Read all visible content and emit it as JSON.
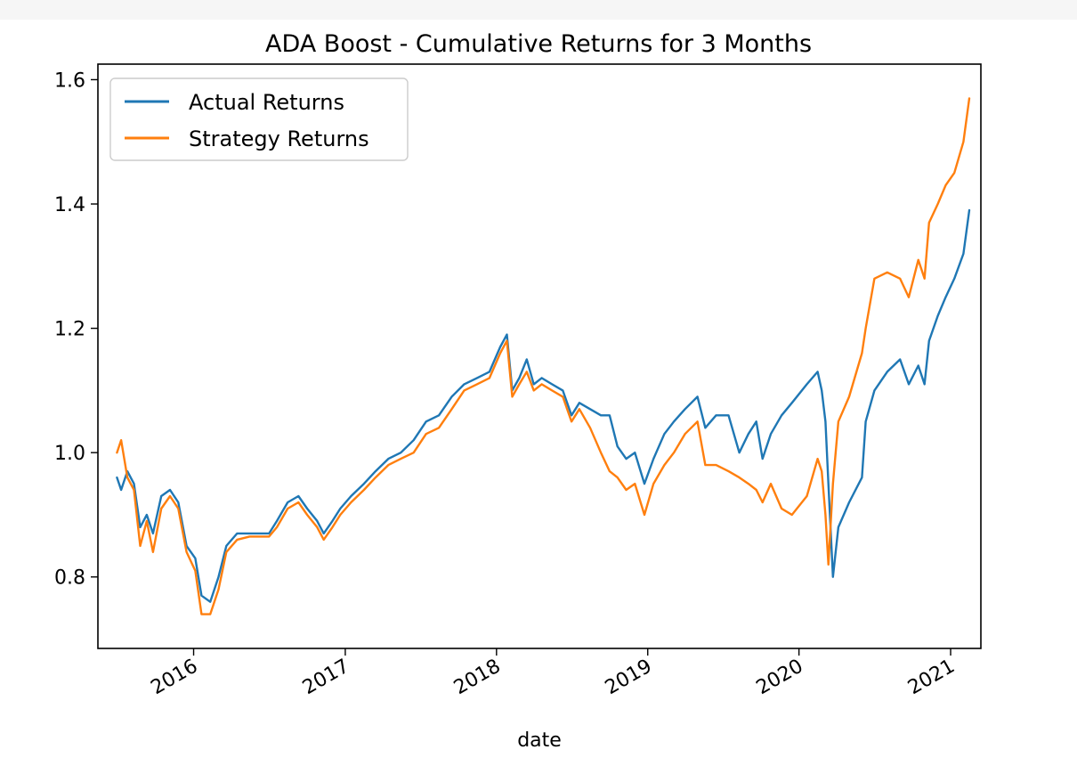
{
  "chart_data": {
    "type": "line",
    "title": "ADA Boost - Cumulative Returns for 3 Months",
    "xlabel": "date",
    "ylabel": "",
    "xlim": [
      "2015-05-15",
      "2021-03-15"
    ],
    "ylim": [
      0.685,
      1.625
    ],
    "x_ticks": [
      "2016",
      "2017",
      "2018",
      "2019",
      "2020",
      "2021"
    ],
    "y_ticks": [
      0.8,
      1.0,
      1.2,
      1.4,
      1.6
    ],
    "y_tick_labels": [
      "0.8",
      "1.0",
      "1.2",
      "1.4",
      "1.6"
    ],
    "grid": false,
    "legend_position": "top-left",
    "series": [
      {
        "name": "Actual Returns",
        "color": "#1f77b4",
        "points": [
          [
            "2015-06-30",
            0.96
          ],
          [
            "2015-07-10",
            0.94
          ],
          [
            "2015-07-25",
            0.97
          ],
          [
            "2015-08-10",
            0.95
          ],
          [
            "2015-08-25",
            0.88
          ],
          [
            "2015-09-10",
            0.9
          ],
          [
            "2015-09-25",
            0.87
          ],
          [
            "2015-10-15",
            0.93
          ],
          [
            "2015-11-05",
            0.94
          ],
          [
            "2015-11-25",
            0.92
          ],
          [
            "2015-12-15",
            0.85
          ],
          [
            "2016-01-05",
            0.83
          ],
          [
            "2016-01-20",
            0.77
          ],
          [
            "2016-02-10",
            0.76
          ],
          [
            "2016-03-01",
            0.8
          ],
          [
            "2016-03-20",
            0.85
          ],
          [
            "2016-04-15",
            0.87
          ],
          [
            "2016-05-15",
            0.87
          ],
          [
            "2016-06-15",
            0.87
          ],
          [
            "2016-07-01",
            0.87
          ],
          [
            "2016-07-20",
            0.89
          ],
          [
            "2016-08-15",
            0.92
          ],
          [
            "2016-09-10",
            0.93
          ],
          [
            "2016-10-01",
            0.91
          ],
          [
            "2016-10-25",
            0.89
          ],
          [
            "2016-11-10",
            0.87
          ],
          [
            "2016-12-01",
            0.89
          ],
          [
            "2016-12-20",
            0.91
          ],
          [
            "2017-01-15",
            0.93
          ],
          [
            "2017-02-15",
            0.95
          ],
          [
            "2017-03-15",
            0.97
          ],
          [
            "2017-04-15",
            0.99
          ],
          [
            "2017-05-15",
            1.0
          ],
          [
            "2017-06-15",
            1.02
          ],
          [
            "2017-07-15",
            1.05
          ],
          [
            "2017-08-15",
            1.06
          ],
          [
            "2017-09-15",
            1.09
          ],
          [
            "2017-10-15",
            1.11
          ],
          [
            "2017-11-15",
            1.12
          ],
          [
            "2017-12-15",
            1.13
          ],
          [
            "2018-01-10",
            1.17
          ],
          [
            "2018-01-26",
            1.19
          ],
          [
            "2018-02-08",
            1.1
          ],
          [
            "2018-02-25",
            1.12
          ],
          [
            "2018-03-15",
            1.15
          ],
          [
            "2018-04-01",
            1.11
          ],
          [
            "2018-04-20",
            1.12
          ],
          [
            "2018-05-15",
            1.11
          ],
          [
            "2018-06-10",
            1.1
          ],
          [
            "2018-07-01",
            1.06
          ],
          [
            "2018-07-20",
            1.08
          ],
          [
            "2018-08-15",
            1.07
          ],
          [
            "2018-09-10",
            1.06
          ],
          [
            "2018-10-01",
            1.06
          ],
          [
            "2018-10-20",
            1.01
          ],
          [
            "2018-11-10",
            0.99
          ],
          [
            "2018-12-01",
            1.0
          ],
          [
            "2018-12-24",
            0.95
          ],
          [
            "2019-01-15",
            0.99
          ],
          [
            "2019-02-10",
            1.03
          ],
          [
            "2019-03-05",
            1.05
          ],
          [
            "2019-04-01",
            1.07
          ],
          [
            "2019-05-01",
            1.09
          ],
          [
            "2019-05-20",
            1.04
          ],
          [
            "2019-06-15",
            1.06
          ],
          [
            "2019-07-15",
            1.06
          ],
          [
            "2019-08-10",
            1.0
          ],
          [
            "2019-09-01",
            1.03
          ],
          [
            "2019-09-20",
            1.05
          ],
          [
            "2019-10-05",
            0.99
          ],
          [
            "2019-10-25",
            1.03
          ],
          [
            "2019-11-20",
            1.06
          ],
          [
            "2019-12-15",
            1.08
          ],
          [
            "2020-01-20",
            1.11
          ],
          [
            "2020-02-15",
            1.13
          ],
          [
            "2020-02-25",
            1.1
          ],
          [
            "2020-03-05",
            1.05
          ],
          [
            "2020-03-12",
            0.95
          ],
          [
            "2020-03-23",
            0.8
          ],
          [
            "2020-04-05",
            0.88
          ],
          [
            "2020-05-01",
            0.92
          ],
          [
            "2020-06-01",
            0.96
          ],
          [
            "2020-06-10",
            1.05
          ],
          [
            "2020-07-01",
            1.1
          ],
          [
            "2020-08-01",
            1.13
          ],
          [
            "2020-09-01",
            1.15
          ],
          [
            "2020-09-22",
            1.11
          ],
          [
            "2020-10-15",
            1.14
          ],
          [
            "2020-10-30",
            1.11
          ],
          [
            "2020-11-10",
            1.18
          ],
          [
            "2020-12-01",
            1.22
          ],
          [
            "2020-12-20",
            1.25
          ],
          [
            "2021-01-10",
            1.28
          ],
          [
            "2021-02-01",
            1.32
          ],
          [
            "2021-02-15",
            1.39
          ]
        ]
      },
      {
        "name": "Strategy Returns",
        "color": "#ff7f0e",
        "points": [
          [
            "2015-06-30",
            1.0
          ],
          [
            "2015-07-10",
            1.02
          ],
          [
            "2015-07-25",
            0.96
          ],
          [
            "2015-08-10",
            0.94
          ],
          [
            "2015-08-25",
            0.85
          ],
          [
            "2015-09-10",
            0.89
          ],
          [
            "2015-09-25",
            0.84
          ],
          [
            "2015-10-15",
            0.91
          ],
          [
            "2015-11-05",
            0.93
          ],
          [
            "2015-11-25",
            0.91
          ],
          [
            "2015-12-15",
            0.84
          ],
          [
            "2016-01-05",
            0.81
          ],
          [
            "2016-01-20",
            0.74
          ],
          [
            "2016-02-10",
            0.74
          ],
          [
            "2016-03-01",
            0.78
          ],
          [
            "2016-03-20",
            0.84
          ],
          [
            "2016-04-15",
            0.86
          ],
          [
            "2016-05-15",
            0.865
          ],
          [
            "2016-06-15",
            0.865
          ],
          [
            "2016-07-01",
            0.865
          ],
          [
            "2016-07-20",
            0.88
          ],
          [
            "2016-08-15",
            0.91
          ],
          [
            "2016-09-10",
            0.92
          ],
          [
            "2016-10-01",
            0.9
          ],
          [
            "2016-10-25",
            0.88
          ],
          [
            "2016-11-10",
            0.86
          ],
          [
            "2016-12-01",
            0.88
          ],
          [
            "2016-12-20",
            0.9
          ],
          [
            "2017-01-15",
            0.92
          ],
          [
            "2017-02-15",
            0.94
          ],
          [
            "2017-03-15",
            0.96
          ],
          [
            "2017-04-15",
            0.98
          ],
          [
            "2017-05-15",
            0.99
          ],
          [
            "2017-06-15",
            1.0
          ],
          [
            "2017-07-15",
            1.03
          ],
          [
            "2017-08-15",
            1.04
          ],
          [
            "2017-09-15",
            1.07
          ],
          [
            "2017-10-15",
            1.1
          ],
          [
            "2017-11-15",
            1.11
          ],
          [
            "2017-12-15",
            1.12
          ],
          [
            "2018-01-10",
            1.16
          ],
          [
            "2018-01-26",
            1.18
          ],
          [
            "2018-02-08",
            1.09
          ],
          [
            "2018-02-25",
            1.11
          ],
          [
            "2018-03-15",
            1.13
          ],
          [
            "2018-04-01",
            1.1
          ],
          [
            "2018-04-20",
            1.11
          ],
          [
            "2018-05-15",
            1.1
          ],
          [
            "2018-06-10",
            1.09
          ],
          [
            "2018-07-01",
            1.05
          ],
          [
            "2018-07-20",
            1.07
          ],
          [
            "2018-08-15",
            1.04
          ],
          [
            "2018-09-10",
            1.0
          ],
          [
            "2018-10-01",
            0.97
          ],
          [
            "2018-10-20",
            0.96
          ],
          [
            "2018-11-10",
            0.94
          ],
          [
            "2018-12-01",
            0.95
          ],
          [
            "2018-12-24",
            0.9
          ],
          [
            "2019-01-15",
            0.95
          ],
          [
            "2019-02-10",
            0.98
          ],
          [
            "2019-03-05",
            1.0
          ],
          [
            "2019-04-01",
            1.03
          ],
          [
            "2019-05-01",
            1.05
          ],
          [
            "2019-05-20",
            0.98
          ],
          [
            "2019-06-15",
            0.98
          ],
          [
            "2019-07-15",
            0.97
          ],
          [
            "2019-08-10",
            0.96
          ],
          [
            "2019-09-01",
            0.95
          ],
          [
            "2019-09-20",
            0.94
          ],
          [
            "2019-10-05",
            0.92
          ],
          [
            "2019-10-25",
            0.95
          ],
          [
            "2019-11-20",
            0.91
          ],
          [
            "2019-12-15",
            0.9
          ],
          [
            "2020-01-20",
            0.93
          ],
          [
            "2020-02-15",
            0.99
          ],
          [
            "2020-02-25",
            0.97
          ],
          [
            "2020-03-05",
            0.9
          ],
          [
            "2020-03-12",
            0.82
          ],
          [
            "2020-03-23",
            0.95
          ],
          [
            "2020-04-05",
            1.05
          ],
          [
            "2020-05-01",
            1.09
          ],
          [
            "2020-06-01",
            1.16
          ],
          [
            "2020-06-10",
            1.2
          ],
          [
            "2020-07-01",
            1.28
          ],
          [
            "2020-08-01",
            1.29
          ],
          [
            "2020-09-01",
            1.28
          ],
          [
            "2020-09-22",
            1.25
          ],
          [
            "2020-10-15",
            1.31
          ],
          [
            "2020-10-30",
            1.28
          ],
          [
            "2020-11-10",
            1.37
          ],
          [
            "2020-12-01",
            1.4
          ],
          [
            "2020-12-20",
            1.43
          ],
          [
            "2021-01-10",
            1.45
          ],
          [
            "2021-02-01",
            1.5
          ],
          [
            "2021-02-15",
            1.57
          ]
        ]
      }
    ]
  }
}
